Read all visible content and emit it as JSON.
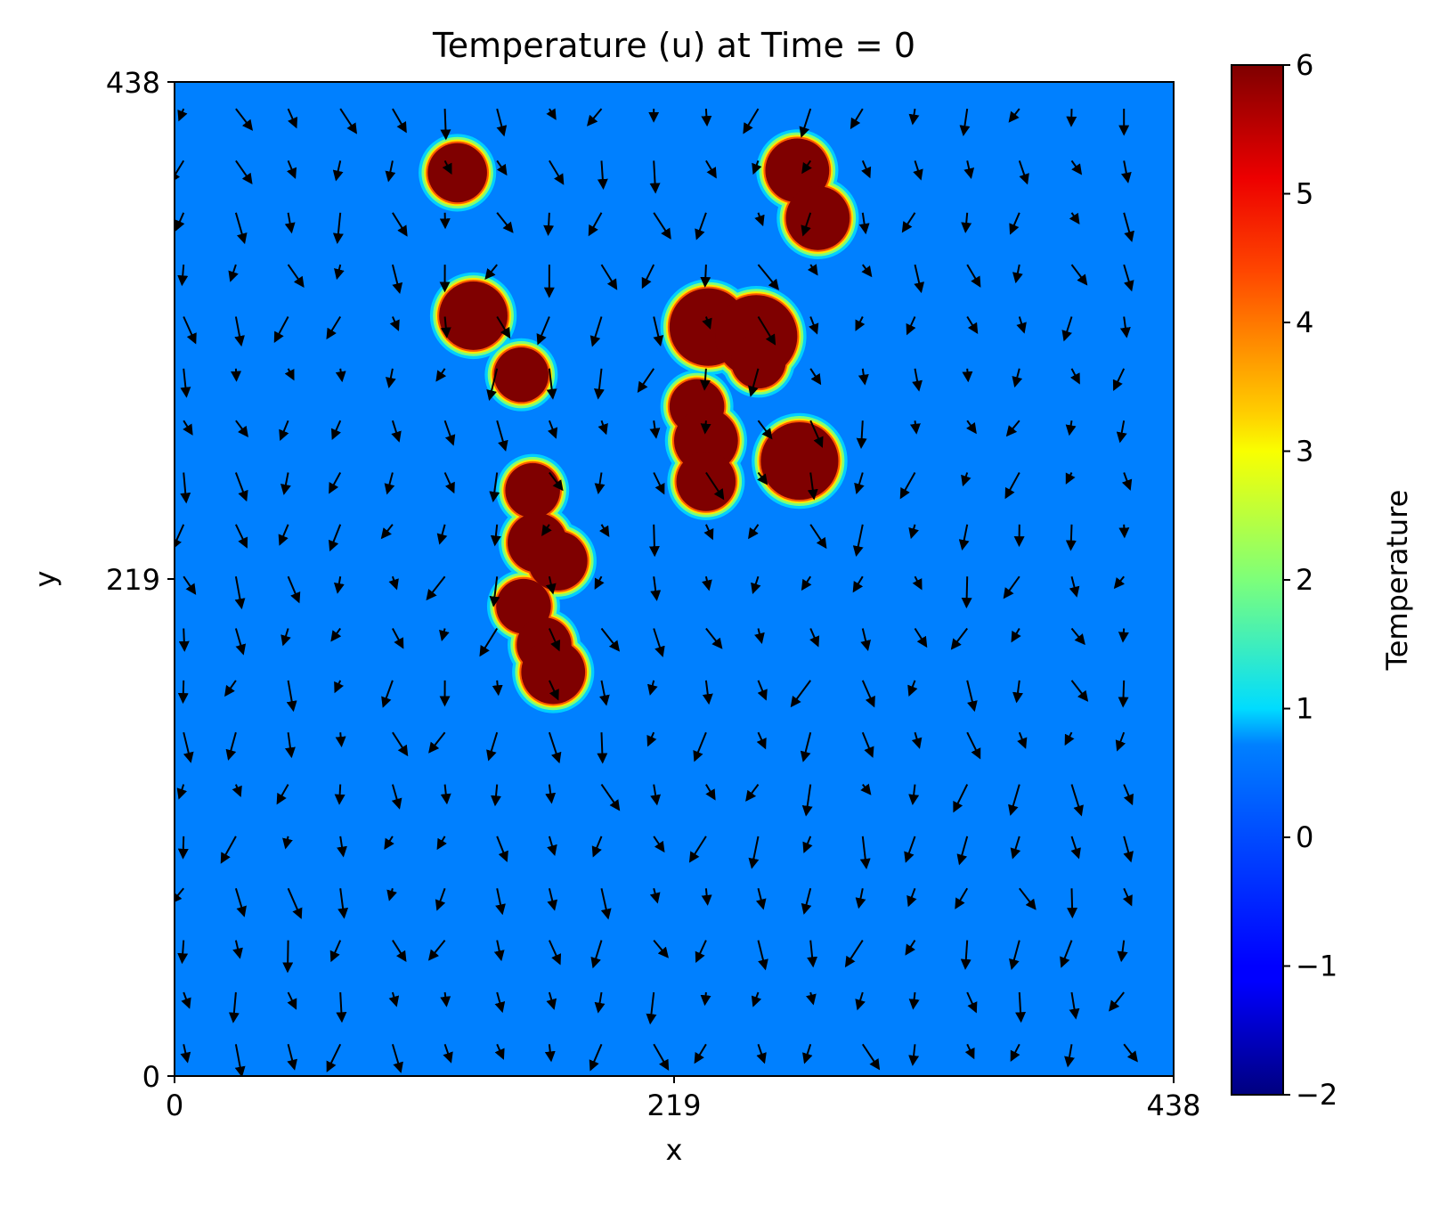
{
  "chart_data": {
    "type": "heatmap",
    "title": "Temperature (u) at Time = 0",
    "xlabel": "x",
    "ylabel": "y",
    "xlim": [
      0,
      438
    ],
    "ylim": [
      0,
      438
    ],
    "xticks": [
      "0",
      "219",
      "438"
    ],
    "yticks": [
      "0",
      "219",
      "438"
    ],
    "colorbar": {
      "label": "Temperature",
      "colormap": "jet",
      "range": [
        -2,
        6
      ],
      "ticks": [
        "−2",
        "−1",
        "0",
        "1",
        "2",
        "3",
        "4",
        "5",
        "6"
      ]
    },
    "field": {
      "background_value": 0,
      "blob_value": 6,
      "blobs": [
        {
          "x": 124,
          "y": 398,
          "r": 13
        },
        {
          "x": 131,
          "y": 335,
          "r": 15
        },
        {
          "x": 152,
          "y": 309,
          "r": 12
        },
        {
          "x": 273,
          "y": 399,
          "r": 14
        },
        {
          "x": 282,
          "y": 378,
          "r": 14
        },
        {
          "x": 234,
          "y": 330,
          "r": 17
        },
        {
          "x": 255,
          "y": 326,
          "r": 18
        },
        {
          "x": 229,
          "y": 295,
          "r": 12
        },
        {
          "x": 233,
          "y": 280,
          "r": 14
        },
        {
          "x": 233,
          "y": 262,
          "r": 13
        },
        {
          "x": 256,
          "y": 315,
          "r": 12
        },
        {
          "x": 274,
          "y": 271,
          "r": 17
        },
        {
          "x": 157,
          "y": 258,
          "r": 12
        },
        {
          "x": 159,
          "y": 235,
          "r": 13
        },
        {
          "x": 168,
          "y": 227,
          "r": 13
        },
        {
          "x": 153,
          "y": 207,
          "r": 12
        },
        {
          "x": 162,
          "y": 190,
          "r": 12
        },
        {
          "x": 166,
          "y": 178,
          "r": 14
        }
      ]
    },
    "quiver": {
      "description": "velocity vectors on a uniform grid",
      "grid_x_start": 4,
      "grid_dx": 22.9,
      "grid_y_start": 14,
      "grid_dy": 22.9,
      "cols": 19,
      "rows": 19,
      "predominant_direction": "downward"
    }
  }
}
